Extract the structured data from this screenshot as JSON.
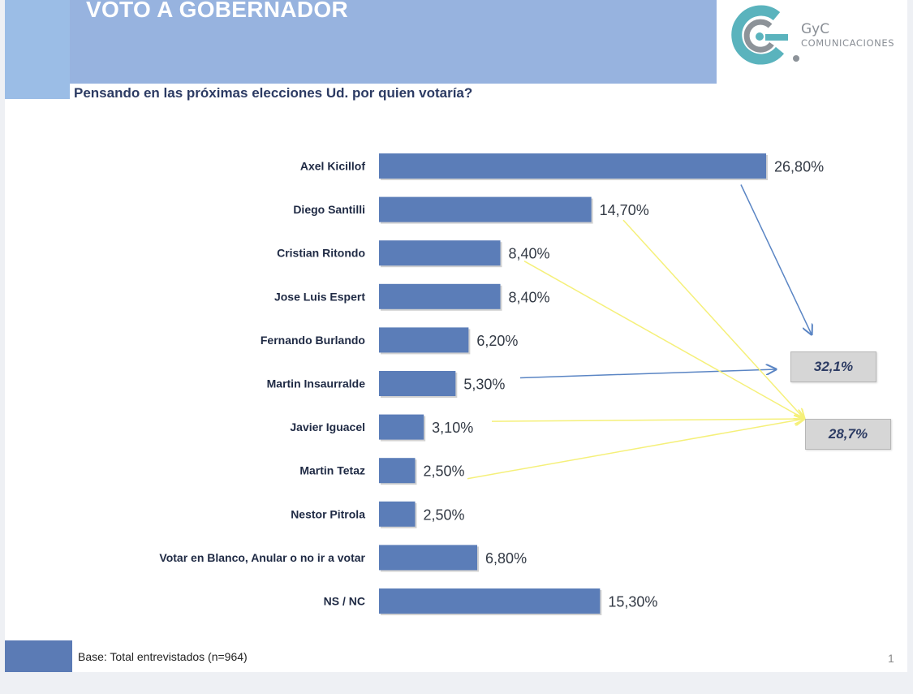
{
  "header": {
    "title": "VOTO A GOBERNADOR",
    "subtitle": "Pensando en las próximas elecciones  Ud. por quien votaría?"
  },
  "logo": {
    "line1": "GyC",
    "line2": "COMUNICACIONES",
    "colors": [
      "#5ab3bd",
      "#8d9399"
    ]
  },
  "chart_data": {
    "type": "bar",
    "orientation": "horizontal",
    "categories": [
      "Axel Kicillof",
      "Diego Santilli",
      "Cristian Ritondo",
      "Jose Luis Espert",
      "Fernando Burlando",
      "Martin Insaurralde",
      "Javier Iguacel",
      "Martin Tetaz",
      "Nestor Pitrola",
      "Votar en Blanco, Anular o no ir a votar",
      "NS / NC"
    ],
    "values": [
      26.8,
      14.7,
      8.4,
      8.4,
      6.2,
      5.3,
      3.1,
      2.5,
      2.5,
      6.8,
      15.3
    ],
    "value_labels": [
      "26,80%",
      "14,70%",
      "8,40%",
      "8,40%",
      "6,20%",
      "5,30%",
      "3,10%",
      "2,50%",
      "2,50%",
      "6,80%",
      "15,30%"
    ],
    "unit": "%",
    "bar_color": "#5b7db8",
    "grid": false,
    "legend": "none",
    "annotations": [
      {
        "label": "32,1%",
        "group": [
          "Axel Kicillof",
          "Martin Insaurralde"
        ],
        "arrow_color": "#5a85c4"
      },
      {
        "label": "28,7%",
        "group": [
          "Diego Santilli",
          "Cristian Ritondo",
          "Javier Iguacel",
          "Martin Tetaz"
        ],
        "arrow_color": "#f5f07a"
      }
    ]
  },
  "footer": {
    "base_text": "Base: Total entrevistados (n=964)",
    "page": "1"
  }
}
